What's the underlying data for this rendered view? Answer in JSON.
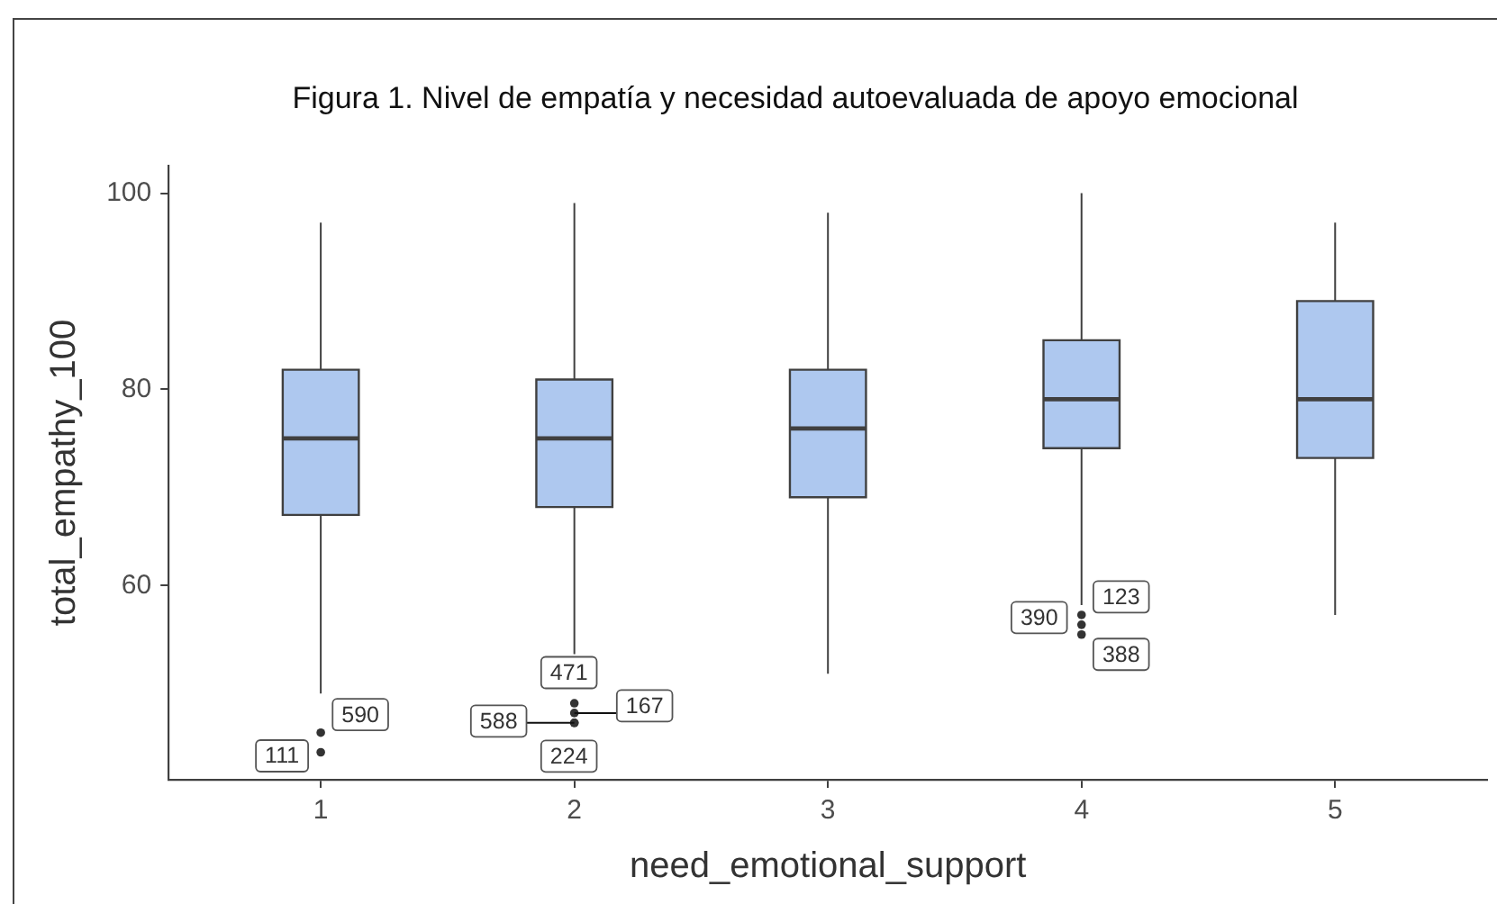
{
  "chart_data": {
    "type": "box",
    "title": "Figura 1. Nivel de empatía y necesidad autoevaluada de apoyo emocional",
    "xlabel": "need_emotional_support",
    "ylabel": "total_empathy_100",
    "categories": [
      "1",
      "2",
      "3",
      "4",
      "5"
    ],
    "series": [
      {
        "color": "#aec8ef",
        "boxes": [
          {
            "low": 49,
            "q1": 67.2,
            "median": 75,
            "q3": 82,
            "high": 97,
            "outliers": [
              45,
              43
            ]
          },
          {
            "low": 53,
            "q1": 68,
            "median": 75,
            "q3": 81,
            "high": 99,
            "outliers": [
              48,
              47,
              46,
              46
            ]
          },
          {
            "low": 51,
            "q1": 69,
            "median": 76,
            "q3": 82,
            "high": 98
          },
          {
            "low": 58,
            "q1": 74,
            "median": 79,
            "q3": 85,
            "high": 100,
            "outliers": [
              57,
              56,
              55
            ]
          },
          {
            "low": 57,
            "q1": 73,
            "median": 79,
            "q3": 89,
            "high": 97
          }
        ]
      }
    ],
    "ylim": [
      40.2,
      102.8
    ],
    "yticks": [
      60,
      80,
      100
    ],
    "annotations": [
      "590",
      "111",
      "471",
      "167",
      "588",
      "224",
      "123",
      "390",
      "388"
    ]
  }
}
